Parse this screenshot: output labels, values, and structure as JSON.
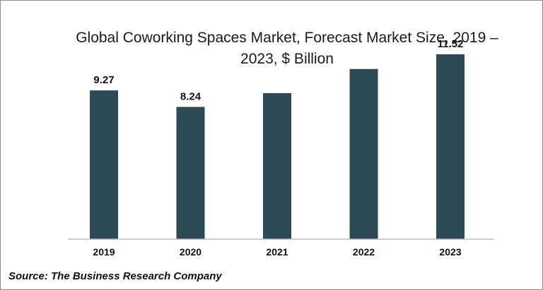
{
  "colors": {
    "bar": "#2e4a56",
    "axis": "#bfbfbf",
    "text": "#111111"
  },
  "chart_data": {
    "type": "bar",
    "title": "Global Coworking Spaces Market, Forecast Market Size, 2019 – 2023, $ Billion",
    "categories": [
      "2019",
      "2020",
      "2021",
      "2022",
      "2023"
    ],
    "values": [
      9.27,
      8.24,
      9.1,
      10.6,
      11.52
    ],
    "data_labels": [
      "9.27",
      "8.24",
      "",
      "",
      "11.52"
    ],
    "xlabel": "",
    "ylabel": "",
    "ylim": [
      0,
      12
    ],
    "grid": false,
    "legend": "none"
  },
  "source": "Source: The Business Research Company"
}
